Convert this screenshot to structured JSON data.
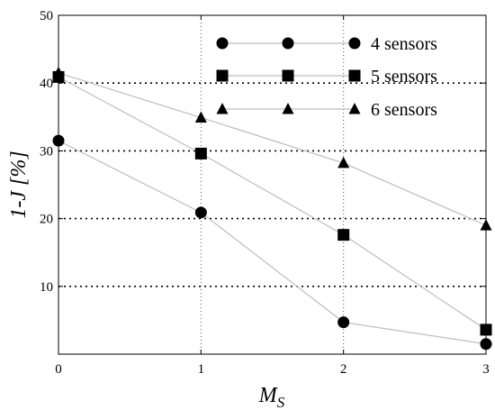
{
  "chart_data": {
    "type": "line",
    "xlabel": "M",
    "xlabel_subscript": "S",
    "ylabel": "1-J [%]",
    "xlim": [
      0,
      3
    ],
    "ylim": [
      0,
      50
    ],
    "xticks": [
      "0",
      "1",
      "2",
      "3"
    ],
    "yticks": [
      "10",
      "20",
      "30",
      "40",
      "50"
    ],
    "x": [
      0,
      1,
      2,
      3
    ],
    "grid": "dotted at y=10,20,30,40 and x=1,2",
    "legend_position": "top-right",
    "series": [
      {
        "name": "4 sensors",
        "marker": "circle",
        "values": [
          31.5,
          20.9,
          4.7,
          1.5
        ]
      },
      {
        "name": "5 sensors",
        "marker": "square",
        "values": [
          40.9,
          29.6,
          17.6,
          3.6
        ]
      },
      {
        "name": "6 sensors",
        "marker": "triangle",
        "values": [
          41.5,
          34.9,
          28.2,
          19.0
        ]
      }
    ],
    "colors": {
      "line": "#bdbdbd",
      "marker": "#000000",
      "grid": "#000000"
    }
  }
}
